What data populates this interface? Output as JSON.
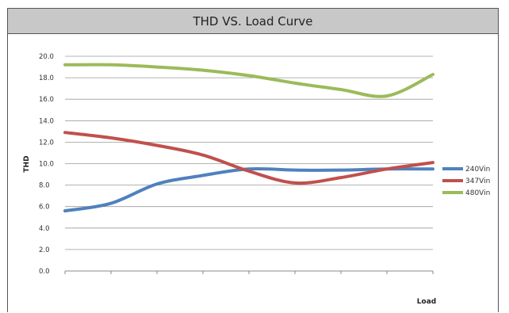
{
  "chart_data": {
    "type": "line",
    "title": "THD VS. Load Curve",
    "xlabel": "Load",
    "ylabel": "THD",
    "ylim": [
      0,
      20
    ],
    "yticks": [
      "0.0",
      "2.0",
      "4.0",
      "6.0",
      "8.0",
      "10.0",
      "12.0",
      "14.0",
      "16.0",
      "18.0",
      "20.0"
    ],
    "grid": true,
    "legend": "right",
    "x": [
      0,
      1,
      2,
      3,
      4,
      5,
      6,
      7,
      8
    ],
    "series": [
      {
        "name": "240Vin",
        "color": "#4f81bd",
        "values": [
          5.6,
          6.3,
          8.1,
          8.9,
          9.5,
          9.4,
          9.4,
          9.5,
          9.5
        ]
      },
      {
        "name": "347Vin",
        "color": "#c0504d",
        "values": [
          12.9,
          12.4,
          11.7,
          10.8,
          9.3,
          8.2,
          8.7,
          9.5,
          10.1
        ]
      },
      {
        "name": "480Vin",
        "color": "#9bbb59",
        "values": [
          19.2,
          19.2,
          19.0,
          18.7,
          18.2,
          17.5,
          16.9,
          16.3,
          18.3
        ]
      }
    ]
  }
}
